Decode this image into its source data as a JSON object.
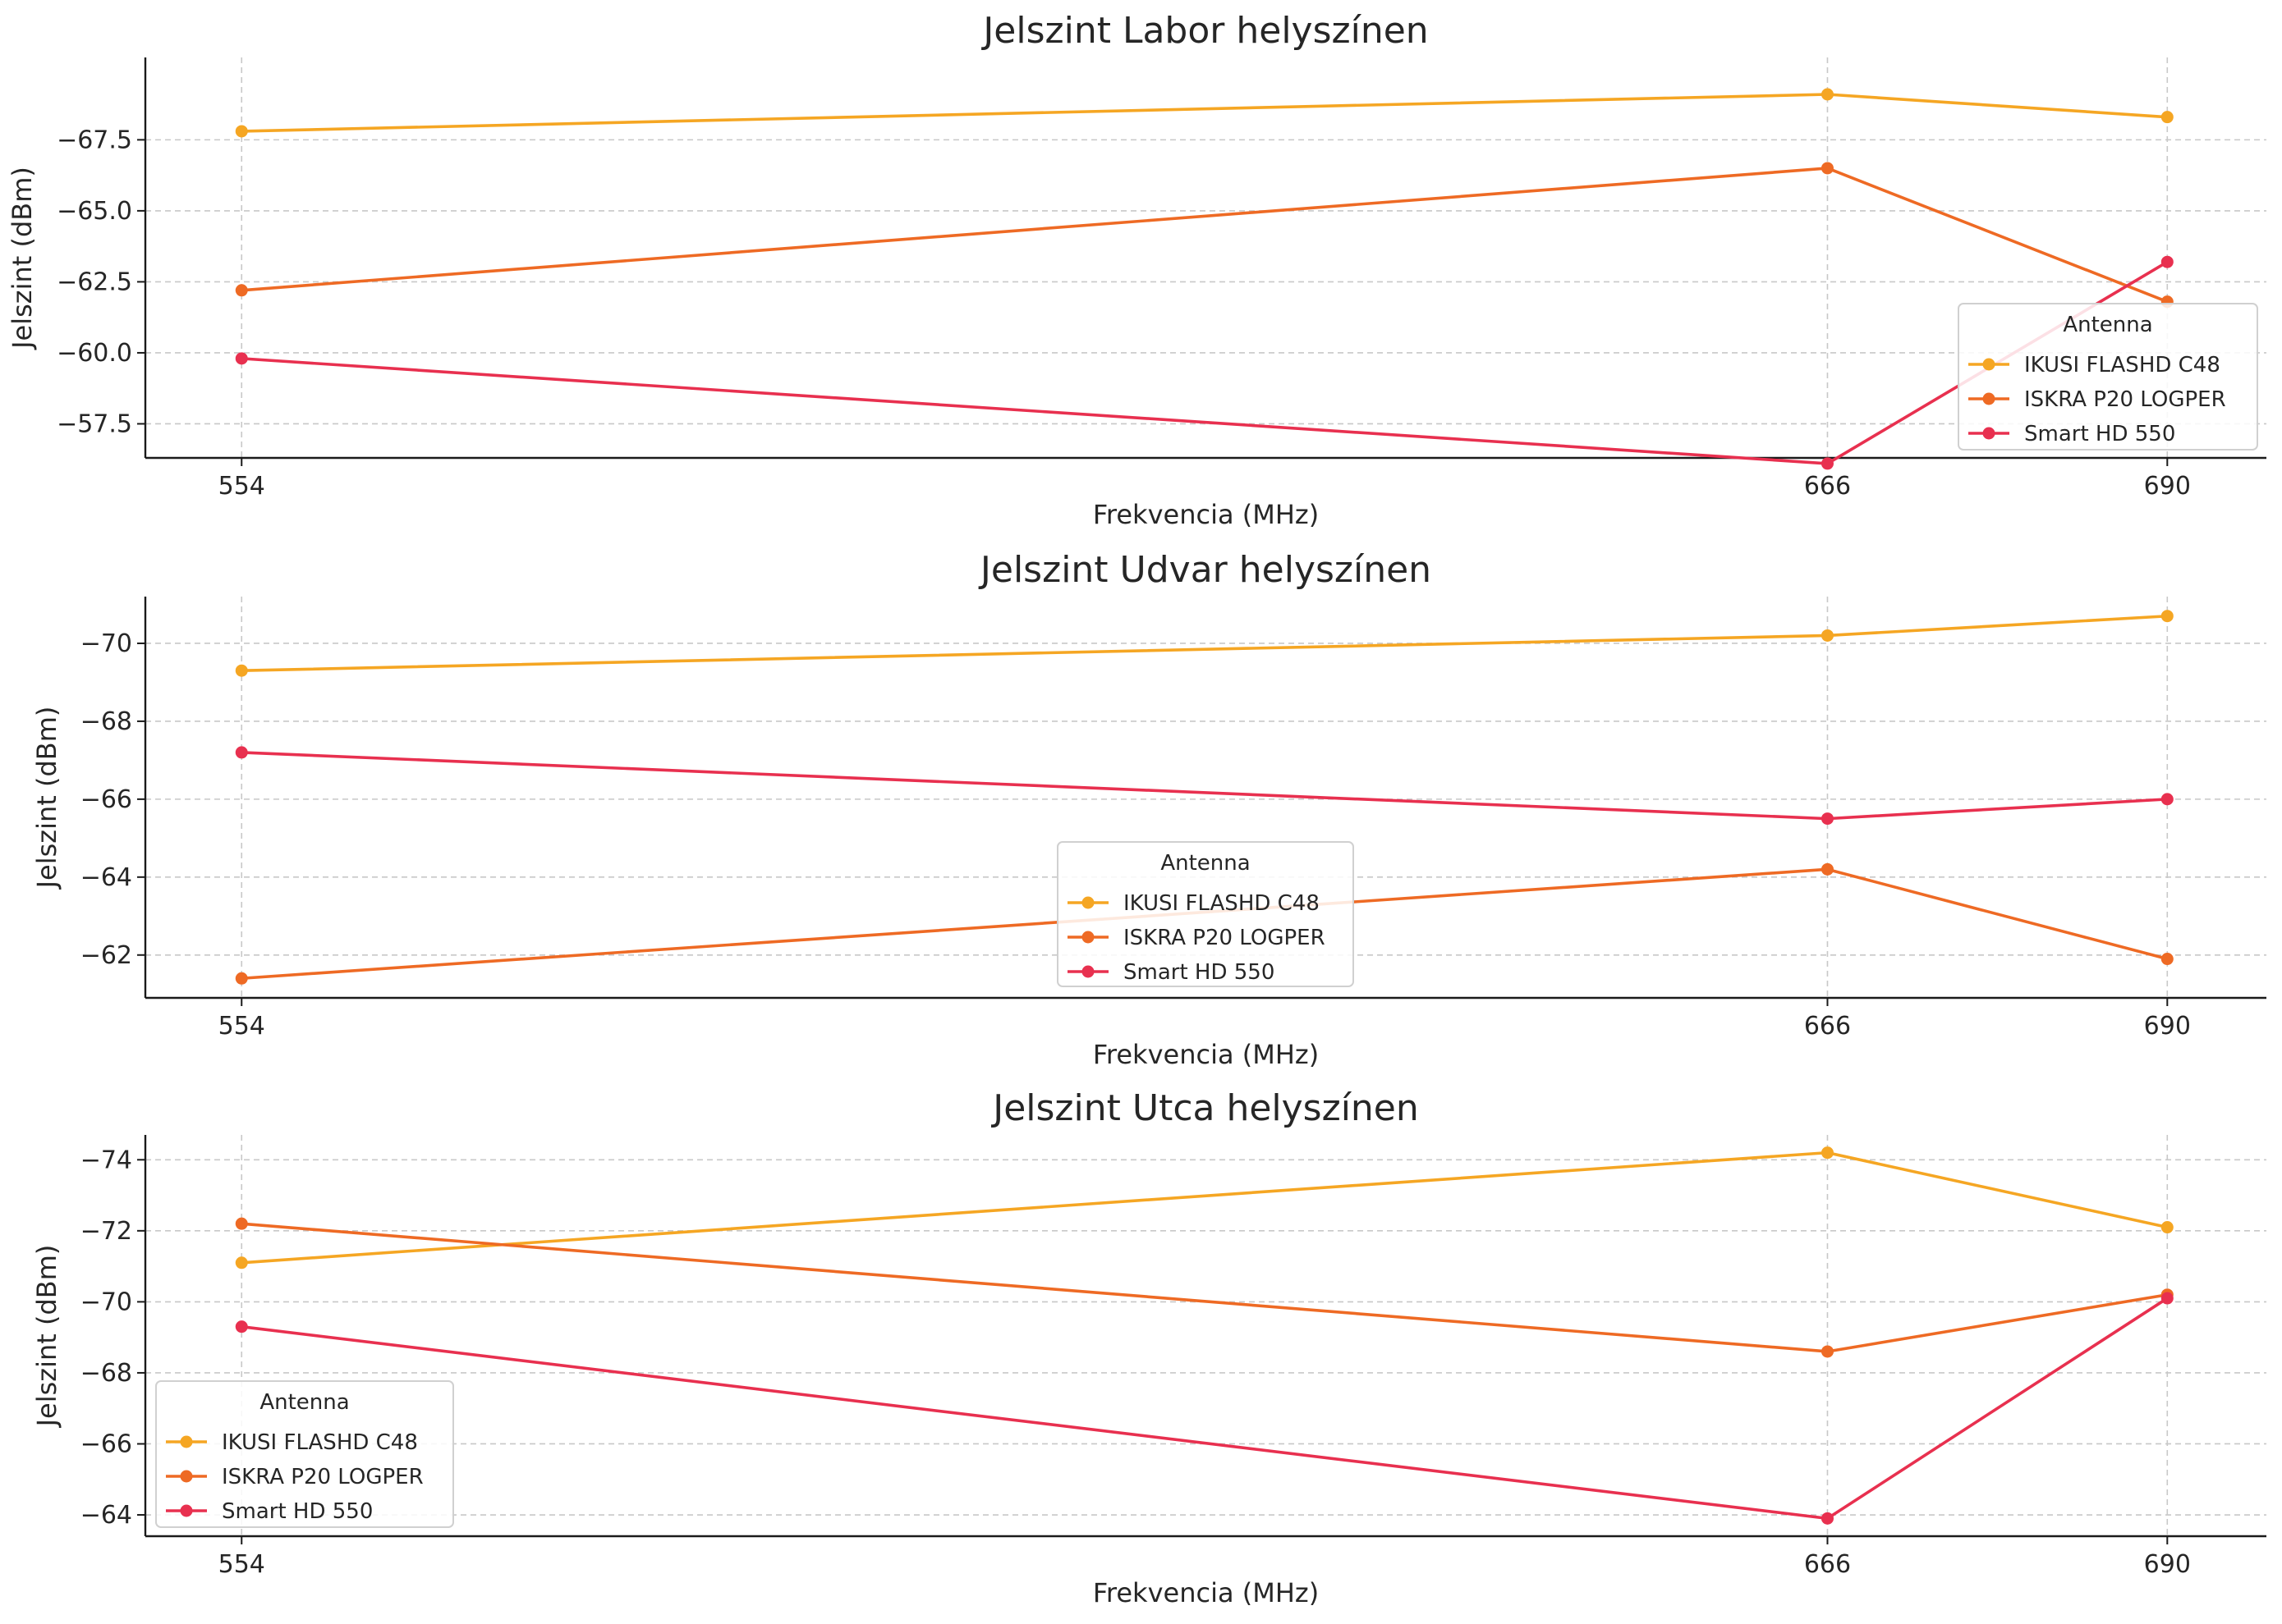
{
  "chart_data": [
    {
      "type": "line",
      "title": "Jelszint Labor helyszínen",
      "xlabel": "Frekvencia (MHz)",
      "ylabel": "Jelszint (dBm)",
      "x": [
        554,
        666,
        690
      ],
      "x_tick_labels": [
        "554",
        "666",
        "690"
      ],
      "xlim": [
        547.2,
        697.0
      ],
      "ylim": [
        -56.3,
        -70.4
      ],
      "y_ticks": [
        -67.5,
        -65.0,
        -62.5,
        -60.0,
        -57.5
      ],
      "y_tick_labels": [
        "−67.5",
        "−65.0",
        "−62.5",
        "−60.0",
        "−57.5"
      ],
      "grid": true,
      "legend": {
        "title": "Antenna",
        "position": "bottom-right"
      },
      "series": [
        {
          "name": "IKUSI FLASHD C48",
          "color": "#f5a623",
          "values": [
            -67.8,
            -69.1,
            -68.3
          ]
        },
        {
          "name": "ISKRA P20 LOGPER",
          "color": "#ee6a24",
          "values": [
            -62.2,
            -66.5,
            -61.8
          ]
        },
        {
          "name": "Smart HD 550",
          "color": "#e8304f",
          "values": [
            -59.8,
            -56.1,
            -63.2
          ]
        }
      ]
    },
    {
      "type": "line",
      "title": "Jelszint Udvar helyszínen",
      "xlabel": "Frekvencia (MHz)",
      "ylabel": "Jelszint (dBm)",
      "x": [
        554,
        666,
        690
      ],
      "x_tick_labels": [
        "554",
        "666",
        "690"
      ],
      "xlim": [
        547.2,
        697.0
      ],
      "ylim": [
        -60.9,
        -71.2
      ],
      "y_ticks": [
        -70,
        -68,
        -66,
        -64,
        -62
      ],
      "y_tick_labels": [
        "−70",
        "−68",
        "−66",
        "−64",
        "−62"
      ],
      "grid": true,
      "legend": {
        "title": "Antenna",
        "position": "bottom-center"
      },
      "series": [
        {
          "name": "IKUSI FLASHD C48",
          "color": "#f5a623",
          "values": [
            -69.3,
            -70.2,
            -70.7
          ]
        },
        {
          "name": "ISKRA P20 LOGPER",
          "color": "#ee6a24",
          "values": [
            -61.4,
            -64.2,
            -61.9
          ]
        },
        {
          "name": "Smart HD 550",
          "color": "#e8304f",
          "values": [
            -67.2,
            -65.5,
            -66.0
          ]
        }
      ]
    },
    {
      "type": "line",
      "title": "Jelszint Utca helyszínen",
      "xlabel": "Frekvencia (MHz)",
      "ylabel": "Jelszint (dBm)",
      "x": [
        554,
        666,
        690
      ],
      "x_tick_labels": [
        "554",
        "666",
        "690"
      ],
      "xlim": [
        547.2,
        697.0
      ],
      "ylim": [
        -63.4,
        -74.7
      ],
      "y_ticks": [
        -74,
        -72,
        -70,
        -68,
        -66,
        -64
      ],
      "y_tick_labels": [
        "−74",
        "−72",
        "−70",
        "−68",
        "−66",
        "−64"
      ],
      "grid": true,
      "legend": {
        "title": "Antenna",
        "position": "bottom-left"
      },
      "series": [
        {
          "name": "IKUSI FLASHD C48",
          "color": "#f5a623",
          "values": [
            -71.1,
            -74.2,
            -72.1
          ]
        },
        {
          "name": "ISKRA P20 LOGPER",
          "color": "#ee6a24",
          "values": [
            -72.2,
            -68.6,
            -70.2
          ]
        },
        {
          "name": "Smart HD 550",
          "color": "#e8304f",
          "values": [
            -69.3,
            -63.9,
            -70.1
          ]
        }
      ]
    }
  ]
}
